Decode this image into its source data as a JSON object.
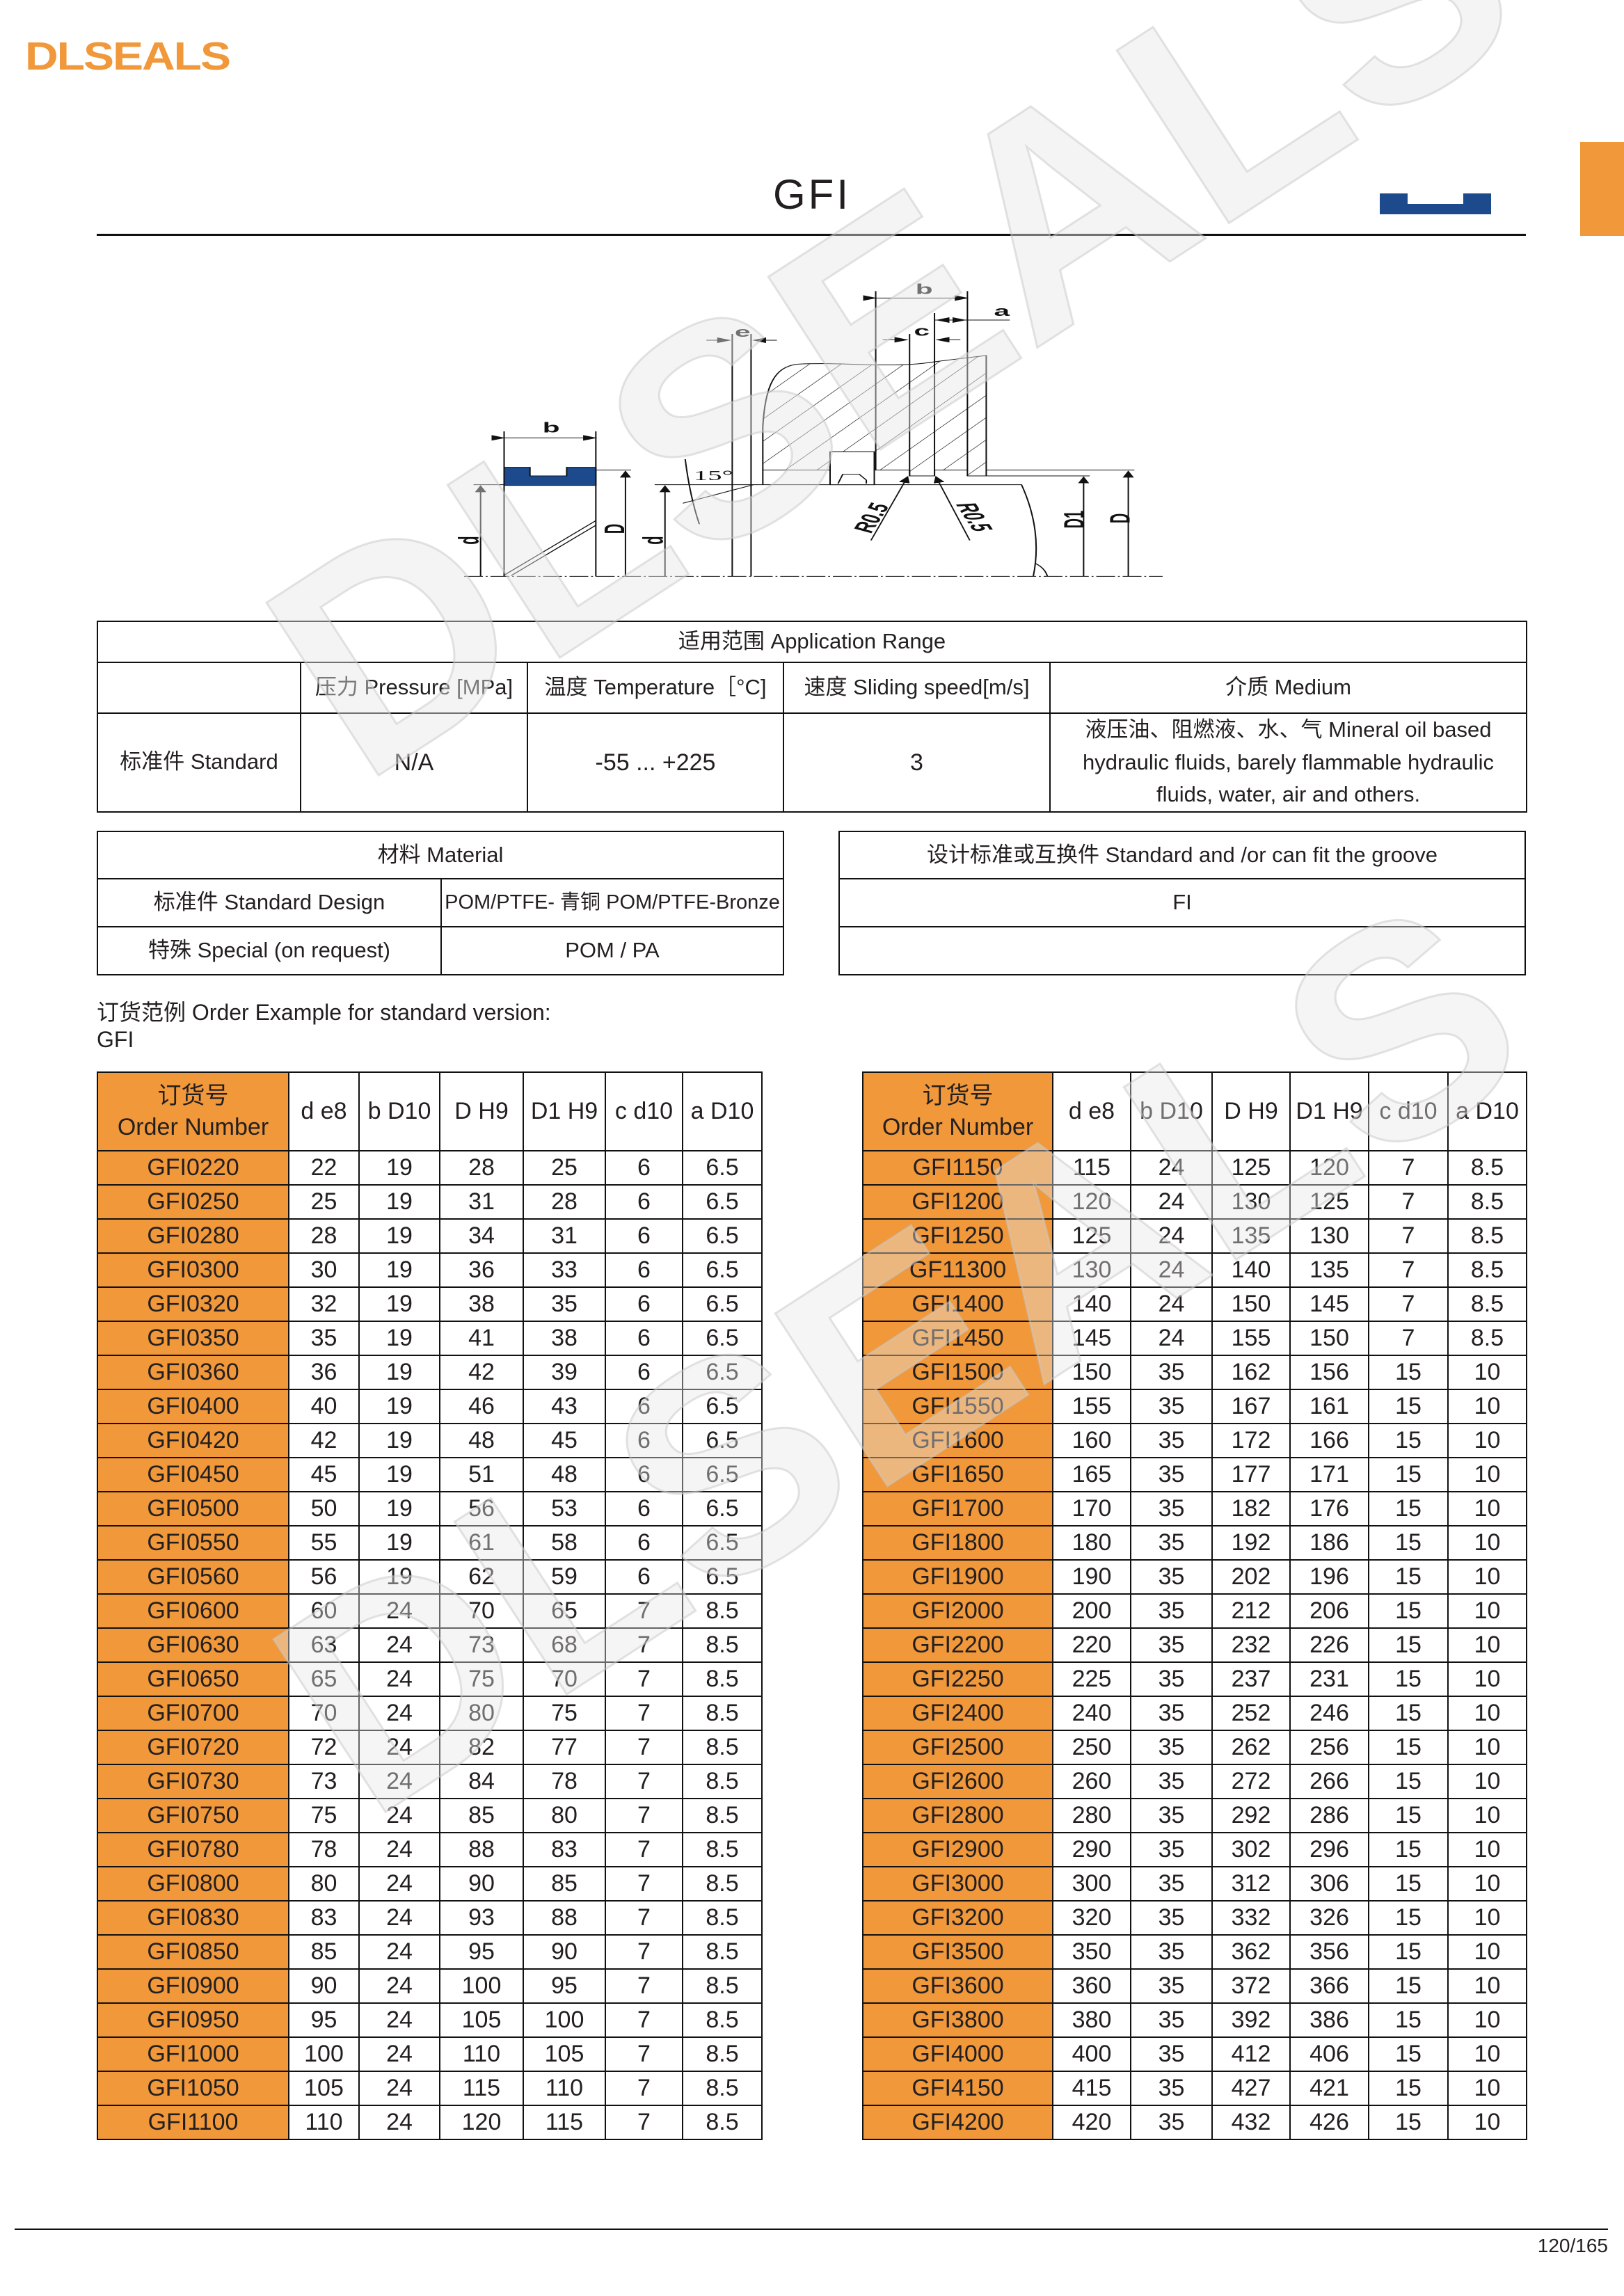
{
  "brand": {
    "logo": "DLSEALS",
    "watermark": "DLSEALS",
    "accent": "#F0983A",
    "profile_color": "#1C4A8C"
  },
  "title": "GFI",
  "diagram": {
    "labels": {
      "b_left": "b",
      "b_right": "b",
      "e": "e",
      "c": "c",
      "a": "a",
      "angle": "15°",
      "r1": "R0.5",
      "r2": "R0.5",
      "d_left": "d",
      "D_left": "D",
      "d_right": "d",
      "D1": "D1",
      "D_right": "D"
    }
  },
  "application": {
    "title": "适用范围 Application Range",
    "headers": [
      "",
      "压力 Pressure [MPa]",
      "温度 Temperature［°C]",
      "速度 Sliding speed[m/s]",
      "介质 Medium"
    ],
    "row": [
      "标准件 Standard",
      "N/A",
      "-55 ... +225",
      "3",
      "液压油、阻燃液、水、气 Mineral oil based hydraulic fluids, barely flammable hydraulic fluids, water, air and others."
    ]
  },
  "material": {
    "title": "材料 Material",
    "rows": [
      [
        "标准件 Standard Design",
        "POM/PTFE- 青铜 POM/PTFE-Bronze"
      ],
      [
        "特殊 Special (on request)",
        "POM / PA"
      ]
    ]
  },
  "standard": {
    "title": "设计标准或互换件 Standard and /or can fit the groove",
    "rows": [
      "FI",
      ""
    ]
  },
  "order_example": {
    "line1": "订货范例 Order Example for standard version:",
    "line2": "GFI"
  },
  "order_table": {
    "header": {
      "order_cn": "订货号",
      "order_en": "Order Number",
      "cols": [
        "d e8",
        "b D10",
        "D H9",
        "D1 H9",
        "c d10",
        "a D10"
      ]
    },
    "left": [
      [
        "GFI0220",
        "22",
        "19",
        "28",
        "25",
        "6",
        "6.5"
      ],
      [
        "GFI0250",
        "25",
        "19",
        "31",
        "28",
        "6",
        "6.5"
      ],
      [
        "GFI0280",
        "28",
        "19",
        "34",
        "31",
        "6",
        "6.5"
      ],
      [
        "GFI0300",
        "30",
        "19",
        "36",
        "33",
        "6",
        "6.5"
      ],
      [
        "GFI0320",
        "32",
        "19",
        "38",
        "35",
        "6",
        "6.5"
      ],
      [
        "GFI0350",
        "35",
        "19",
        "41",
        "38",
        "6",
        "6.5"
      ],
      [
        "GFI0360",
        "36",
        "19",
        "42",
        "39",
        "6",
        "6.5"
      ],
      [
        "GFI0400",
        "40",
        "19",
        "46",
        "43",
        "6",
        "6.5"
      ],
      [
        "GFI0420",
        "42",
        "19",
        "48",
        "45",
        "6",
        "6.5"
      ],
      [
        "GFI0450",
        "45",
        "19",
        "51",
        "48",
        "6",
        "6.5"
      ],
      [
        "GFI0500",
        "50",
        "19",
        "56",
        "53",
        "6",
        "6.5"
      ],
      [
        "GFI0550",
        "55",
        "19",
        "61",
        "58",
        "6",
        "6.5"
      ],
      [
        "GFI0560",
        "56",
        "19",
        "62",
        "59",
        "6",
        "6.5"
      ],
      [
        "GFI0600",
        "60",
        "24",
        "70",
        "65",
        "7",
        "8.5"
      ],
      [
        "GFI0630",
        "63",
        "24",
        "73",
        "68",
        "7",
        "8.5"
      ],
      [
        "GFI0650",
        "65",
        "24",
        "75",
        "70",
        "7",
        "8.5"
      ],
      [
        "GFI0700",
        "70",
        "24",
        "80",
        "75",
        "7",
        "8.5"
      ],
      [
        "GFI0720",
        "72",
        "24",
        "82",
        "77",
        "7",
        "8.5"
      ],
      [
        "GFI0730",
        "73",
        "24",
        "84",
        "78",
        "7",
        "8.5"
      ],
      [
        "GFI0750",
        "75",
        "24",
        "85",
        "80",
        "7",
        "8.5"
      ],
      [
        "GFI0780",
        "78",
        "24",
        "88",
        "83",
        "7",
        "8.5"
      ],
      [
        "GFI0800",
        "80",
        "24",
        "90",
        "85",
        "7",
        "8.5"
      ],
      [
        "GFI0830",
        "83",
        "24",
        "93",
        "88",
        "7",
        "8.5"
      ],
      [
        "GFI0850",
        "85",
        "24",
        "95",
        "90",
        "7",
        "8.5"
      ],
      [
        "GFI0900",
        "90",
        "24",
        "100",
        "95",
        "7",
        "8.5"
      ],
      [
        "GFI0950",
        "95",
        "24",
        "105",
        "100",
        "7",
        "8.5"
      ],
      [
        "GFI1000",
        "100",
        "24",
        "110",
        "105",
        "7",
        "8.5"
      ],
      [
        "GFI1050",
        "105",
        "24",
        "115",
        "110",
        "7",
        "8.5"
      ],
      [
        "GFI1100",
        "110",
        "24",
        "120",
        "115",
        "7",
        "8.5"
      ]
    ],
    "right": [
      [
        "GFI1150",
        "115",
        "24",
        "125",
        "120",
        "7",
        "8.5"
      ],
      [
        "GFI1200",
        "120",
        "24",
        "130",
        "125",
        "7",
        "8.5"
      ],
      [
        "GFI1250",
        "125",
        "24",
        "135",
        "130",
        "7",
        "8.5"
      ],
      [
        "GF11300",
        "130",
        "24",
        "140",
        "135",
        "7",
        "8.5"
      ],
      [
        "GFI1400",
        "140",
        "24",
        "150",
        "145",
        "7",
        "8.5"
      ],
      [
        "GFI1450",
        "145",
        "24",
        "155",
        "150",
        "7",
        "8.5"
      ],
      [
        "GFI1500",
        "150",
        "35",
        "162",
        "156",
        "15",
        "10"
      ],
      [
        "GFI1550",
        "155",
        "35",
        "167",
        "161",
        "15",
        "10"
      ],
      [
        "GFI1600",
        "160",
        "35",
        "172",
        "166",
        "15",
        "10"
      ],
      [
        "GFI1650",
        "165",
        "35",
        "177",
        "171",
        "15",
        "10"
      ],
      [
        "GFI1700",
        "170",
        "35",
        "182",
        "176",
        "15",
        "10"
      ],
      [
        "GFI1800",
        "180",
        "35",
        "192",
        "186",
        "15",
        "10"
      ],
      [
        "GFI1900",
        "190",
        "35",
        "202",
        "196",
        "15",
        "10"
      ],
      [
        "GFI2000",
        "200",
        "35",
        "212",
        "206",
        "15",
        "10"
      ],
      [
        "GFI2200",
        "220",
        "35",
        "232",
        "226",
        "15",
        "10"
      ],
      [
        "GFI2250",
        "225",
        "35",
        "237",
        "231",
        "15",
        "10"
      ],
      [
        "GFI2400",
        "240",
        "35",
        "252",
        "246",
        "15",
        "10"
      ],
      [
        "GFI2500",
        "250",
        "35",
        "262",
        "256",
        "15",
        "10"
      ],
      [
        "GFI2600",
        "260",
        "35",
        "272",
        "266",
        "15",
        "10"
      ],
      [
        "GFI2800",
        "280",
        "35",
        "292",
        "286",
        "15",
        "10"
      ],
      [
        "GFI2900",
        "290",
        "35",
        "302",
        "296",
        "15",
        "10"
      ],
      [
        "GFI3000",
        "300",
        "35",
        "312",
        "306",
        "15",
        "10"
      ],
      [
        "GFI3200",
        "320",
        "35",
        "332",
        "326",
        "15",
        "10"
      ],
      [
        "GFI3500",
        "350",
        "35",
        "362",
        "356",
        "15",
        "10"
      ],
      [
        "GFI3600",
        "360",
        "35",
        "372",
        "366",
        "15",
        "10"
      ],
      [
        "GFI3800",
        "380",
        "35",
        "392",
        "386",
        "15",
        "10"
      ],
      [
        "GFI4000",
        "400",
        "35",
        "412",
        "406",
        "15",
        "10"
      ],
      [
        "GFI4150",
        "415",
        "35",
        "427",
        "421",
        "15",
        "10"
      ],
      [
        "GFI4200",
        "420",
        "35",
        "432",
        "426",
        "15",
        "10"
      ]
    ]
  },
  "footer": {
    "page": "120/165"
  }
}
